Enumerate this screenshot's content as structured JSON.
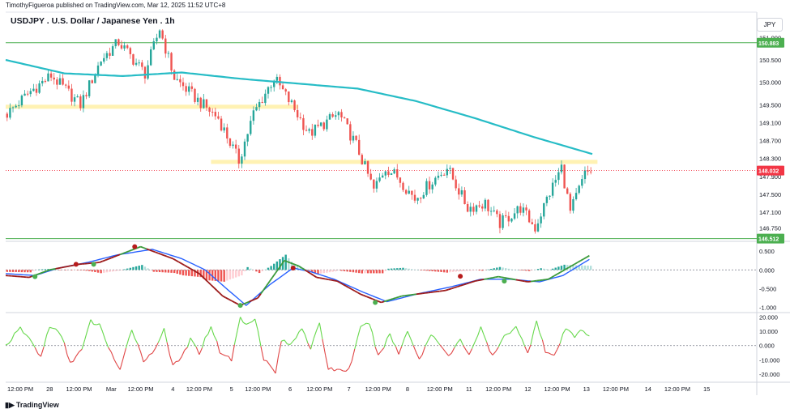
{
  "header": {
    "publish_text": "TimothyFigueroa published on TradingView.com, Mar 12, 2025 11:52 UTC+8",
    "symbol_title": "USDJPY . U.S. Dollar / Japanese Yen . 1h",
    "currency": "JPY"
  },
  "footer": {
    "logo_text": "TradingView",
    "logo_icon": "tradingview-logo-icon"
  },
  "colors": {
    "up": "#26a69a",
    "down": "#ef5350",
    "ma": "#26bcc6",
    "hline": "#4caf50",
    "zone": "#fff2b3",
    "price_tag": "#f23645",
    "macd_fast": "#3a9a3a",
    "macd_slow": "#2962ff",
    "macd_slow_dark": "#9c1a1a",
    "osc_up": "#66d84b",
    "osc_down": "#e04545"
  },
  "chart_data": [
    {
      "type": "candlestick",
      "panel": "price",
      "title": "USDJPY . U.S. Dollar / Japanese Yen . 1h",
      "y_ticks": [
        151.0,
        150.5,
        150.0,
        149.5,
        149.1,
        148.7,
        148.3,
        147.9,
        147.5,
        147.1,
        146.75
      ],
      "y_tick_labels": [
        "151.000",
        "150.500",
        "150.000",
        "149.500",
        "149.100",
        "148.700",
        "148.300",
        "147.900",
        "147.500",
        "147.100",
        "146.750"
      ],
      "ylim": [
        146.47,
        151.53
      ],
      "horizontal_lines": [
        {
          "price": 150.883,
          "label": "150.883"
        },
        {
          "price": 146.512,
          "label": "146.512"
        }
      ],
      "last_price": {
        "price": 148.032,
        "label": "148.032"
      },
      "zones": [
        {
          "from_bar": 0,
          "to_bar": 97,
          "low": 149.43,
          "high": 149.5
        },
        {
          "from_bar": 70,
          "to_bar": 199,
          "low": 148.2,
          "high": 148.27
        }
      ],
      "moving_average": [
        [
          0,
          150.5
        ],
        [
          20,
          150.2
        ],
        [
          40,
          150.14
        ],
        [
          60,
          150.22
        ],
        [
          80,
          150.08
        ],
        [
          100,
          149.97
        ],
        [
          120,
          149.86
        ],
        [
          140,
          149.58
        ],
        [
          160,
          149.2
        ],
        [
          180,
          148.78
        ],
        [
          200,
          148.4
        ]
      ],
      "path_keypoints": [
        [
          0,
          149.3
        ],
        [
          8,
          149.8
        ],
        [
          15,
          150.15
        ],
        [
          25,
          149.5
        ],
        [
          32,
          150.5
        ],
        [
          38,
          150.9
        ],
        [
          47,
          150.2
        ],
        [
          52,
          151.2
        ],
        [
          57,
          150.1
        ],
        [
          65,
          149.6
        ],
        [
          72,
          149.2
        ],
        [
          79,
          148.25
        ],
        [
          84,
          149.3
        ],
        [
          91,
          150.1
        ],
        [
          97,
          149.5
        ],
        [
          103,
          148.85
        ],
        [
          113,
          149.3
        ],
        [
          119,
          148.6
        ],
        [
          125,
          147.6
        ],
        [
          129,
          148.1
        ],
        [
          133,
          147.9
        ],
        [
          139,
          147.4
        ],
        [
          145,
          147.8
        ],
        [
          150,
          148.1
        ],
        [
          157,
          147.2
        ],
        [
          163,
          147.3
        ],
        [
          168,
          146.85
        ],
        [
          175,
          147.2
        ],
        [
          180,
          146.75
        ],
        [
          184,
          147.4
        ],
        [
          189,
          148.1
        ],
        [
          192,
          147.1
        ],
        [
          197,
          147.95
        ],
        [
          199,
          148.03
        ]
      ]
    },
    {
      "type": "line",
      "panel": "macd",
      "y_ticks": [
        0.5,
        0.0,
        -0.5,
        -1.0
      ],
      "y_tick_labels": [
        "0.500",
        "0.000",
        "-0.500",
        "-1.000"
      ],
      "ylim": [
        -1.12,
        0.72
      ],
      "series": [
        {
          "role": "fast",
          "keypoints": [
            [
              0,
              -0.15
            ],
            [
              8,
              -0.2
            ],
            [
              15,
              0.0
            ],
            [
              25,
              0.15
            ],
            [
              32,
              0.2
            ],
            [
              46,
              0.62
            ],
            [
              57,
              0.3
            ],
            [
              66,
              -0.1
            ],
            [
              74,
              -0.7
            ],
            [
              80,
              -0.95
            ],
            [
              86,
              -0.75
            ],
            [
              95,
              0.25
            ],
            [
              100,
              0.1
            ],
            [
              106,
              -0.2
            ],
            [
              113,
              -0.3
            ],
            [
              121,
              -0.65
            ],
            [
              128,
              -0.87
            ],
            [
              135,
              -0.7
            ],
            [
              150,
              -0.55
            ],
            [
              160,
              -0.3
            ],
            [
              168,
              -0.18
            ],
            [
              178,
              -0.32
            ],
            [
              185,
              -0.25
            ],
            [
              199,
              0.38
            ]
          ]
        },
        {
          "role": "slow",
          "keypoints": [
            [
              0,
              -0.1
            ],
            [
              10,
              -0.15
            ],
            [
              18,
              0.05
            ],
            [
              28,
              0.2
            ],
            [
              38,
              0.4
            ],
            [
              50,
              0.55
            ],
            [
              60,
              0.3
            ],
            [
              68,
              0.0
            ],
            [
              76,
              -0.55
            ],
            [
              82,
              -0.95
            ],
            [
              90,
              -0.4
            ],
            [
              98,
              0.05
            ],
            [
              104,
              -0.05
            ],
            [
              112,
              -0.25
            ],
            [
              122,
              -0.6
            ],
            [
              130,
              -0.85
            ],
            [
              140,
              -0.65
            ],
            [
              152,
              -0.45
            ],
            [
              162,
              -0.25
            ],
            [
              172,
              -0.25
            ],
            [
              182,
              -0.32
            ],
            [
              190,
              -0.15
            ],
            [
              199,
              0.28
            ]
          ]
        }
      ],
      "signal_dots": [
        {
          "bar": 10,
          "value": -0.18,
          "kind": "up"
        },
        {
          "bar": 24,
          "value": 0.15,
          "kind": "down"
        },
        {
          "bar": 30,
          "value": 0.15,
          "kind": "up"
        },
        {
          "bar": 44,
          "value": 0.62,
          "kind": "down"
        },
        {
          "bar": 80,
          "value": -0.95,
          "kind": "up"
        },
        {
          "bar": 98,
          "value": 0.05,
          "kind": "down"
        },
        {
          "bar": 126,
          "value": -0.87,
          "kind": "up"
        },
        {
          "bar": 155,
          "value": -0.17,
          "kind": "down"
        },
        {
          "bar": 170,
          "value": -0.3,
          "kind": "up"
        }
      ]
    },
    {
      "type": "line",
      "panel": "oscillator",
      "y_ticks": [
        20,
        10,
        0,
        -10,
        -20
      ],
      "y_tick_labels": [
        "20.000",
        "10.000",
        "0.000",
        "-10.000",
        "-20.000"
      ],
      "ylim": [
        -24.5,
        22.5
      ],
      "keypoints": [
        [
          0,
          0
        ],
        [
          5,
          12
        ],
        [
          8,
          5
        ],
        [
          12,
          -8
        ],
        [
          15,
          14
        ],
        [
          19,
          7
        ],
        [
          22,
          -12
        ],
        [
          26,
          -3
        ],
        [
          29,
          17
        ],
        [
          32,
          14
        ],
        [
          36,
          -5
        ],
        [
          39,
          -18
        ],
        [
          43,
          12
        ],
        [
          47,
          -10
        ],
        [
          50,
          -6
        ],
        [
          54,
          12
        ],
        [
          57,
          -15
        ],
        [
          60,
          -8
        ],
        [
          63,
          4
        ],
        [
          66,
          -5
        ],
        [
          70,
          14
        ],
        [
          73,
          -4
        ],
        [
          77,
          -10
        ],
        [
          80,
          20
        ],
        [
          82,
          14
        ],
        [
          85,
          20
        ],
        [
          88,
          -9
        ],
        [
          92,
          -19
        ],
        [
          94,
          4
        ],
        [
          97,
          0
        ],
        [
          101,
          13
        ],
        [
          104,
          -2
        ],
        [
          107,
          15
        ],
        [
          110,
          -16
        ],
        [
          113,
          -17
        ],
        [
          117,
          -17
        ],
        [
          121,
          12
        ],
        [
          124,
          16
        ],
        [
          127,
          -8
        ],
        [
          131,
          8
        ],
        [
          134,
          -6
        ],
        [
          137,
          11
        ],
        [
          141,
          -10
        ],
        [
          145,
          8
        ],
        [
          148,
          2
        ],
        [
          151,
          -8
        ],
        [
          155,
          4
        ],
        [
          158,
          -6
        ],
        [
          162,
          12
        ],
        [
          166,
          -8
        ],
        [
          170,
          6
        ],
        [
          174,
          14
        ],
        [
          178,
          -6
        ],
        [
          181,
          18
        ],
        [
          184,
          -4
        ],
        [
          187,
          -8
        ],
        [
          191,
          12
        ],
        [
          194,
          6
        ],
        [
          196,
          12
        ],
        [
          199,
          7
        ]
      ]
    }
  ],
  "time_axis": {
    "labels": [
      {
        "bar": 5,
        "text": "12:00 PM"
      },
      {
        "bar": 15,
        "text": "28"
      },
      {
        "bar": 25,
        "text": "12:00 PM"
      },
      {
        "bar": 36,
        "text": "Mar"
      },
      {
        "bar": 46,
        "text": "12:00 PM"
      },
      {
        "bar": 57,
        "text": "4"
      },
      {
        "bar": 66,
        "text": "12:00 PM"
      },
      {
        "bar": 77,
        "text": "5"
      },
      {
        "bar": 86,
        "text": "12:00 PM"
      },
      {
        "bar": 97,
        "text": "6"
      },
      {
        "bar": 107,
        "text": "12:00 PM"
      },
      {
        "bar": 117,
        "text": "7"
      },
      {
        "bar": 127,
        "text": "12:00 PM"
      },
      {
        "bar": 137,
        "text": "8"
      },
      {
        "bar": 148,
        "text": "12:00 PM"
      },
      {
        "bar": 158,
        "text": "11"
      },
      {
        "bar": 168,
        "text": "12:00 PM"
      },
      {
        "bar": 178,
        "text": "12"
      },
      {
        "bar": 188,
        "text": "12:00 PM"
      },
      {
        "bar": 198,
        "text": "13"
      },
      {
        "bar": 208,
        "text": "12:00 PM"
      },
      {
        "bar": 219,
        "text": "14"
      },
      {
        "bar": 229,
        "text": "12:00 PM"
      },
      {
        "bar": 239,
        "text": "15"
      }
    ]
  }
}
